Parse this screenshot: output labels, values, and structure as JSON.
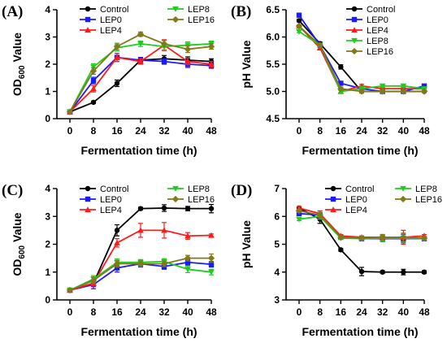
{
  "x_ticks": [
    0,
    8,
    16,
    24,
    32,
    40,
    48
  ],
  "colors": {
    "Control": "#000000",
    "LEP0": "#1a1aff",
    "LEP4": "#ff1a1a",
    "LEP8": "#1fcc1f",
    "LEP16": "#807a1a"
  },
  "chart_data": [
    {
      "panel": "(A)",
      "type": "line",
      "xlabel": "Fermentation time (h)",
      "ylabel": "OD600 Value",
      "ylabel_main": "OD",
      "ylabel_sub": "600",
      "ylabel_tail": " Value",
      "ylim": [
        0,
        4
      ],
      "yticks": [
        0,
        1,
        2,
        3,
        4
      ],
      "ytick_labels": [
        "0",
        "1",
        "2",
        "3",
        "4"
      ],
      "legend": "top",
      "x": [
        0,
        8,
        16,
        24,
        32,
        40,
        48
      ],
      "series": [
        {
          "name": "Control",
          "marker": "circle",
          "values": [
            0.25,
            0.6,
            1.3,
            2.15,
            2.2,
            2.15,
            2.1
          ],
          "err": [
            0.03,
            0.04,
            0.12,
            0.1,
            0.12,
            0.12,
            0.1
          ]
        },
        {
          "name": "LEP0",
          "marker": "square",
          "values": [
            0.25,
            1.4,
            2.25,
            2.15,
            2.1,
            2.0,
            1.95
          ],
          "err": [
            0.03,
            0.12,
            0.15,
            0.1,
            0.1,
            0.12,
            0.1
          ]
        },
        {
          "name": "LEP4",
          "marker": "triangle-up",
          "values": [
            0.25,
            1.1,
            2.25,
            2.1,
            2.7,
            2.1,
            2.0
          ],
          "err": [
            0.03,
            0.12,
            0.15,
            0.1,
            0.2,
            0.12,
            0.1
          ]
        },
        {
          "name": "LEP8",
          "marker": "triangle-down",
          "values": [
            0.25,
            1.9,
            2.6,
            2.75,
            2.65,
            2.7,
            2.75
          ],
          "err": [
            0.03,
            0.12,
            0.12,
            0.1,
            0.12,
            0.12,
            0.1
          ]
        },
        {
          "name": "LEP16",
          "marker": "diamond",
          "values": [
            0.25,
            1.75,
            2.65,
            3.1,
            2.75,
            2.55,
            2.65
          ],
          "err": [
            0.03,
            0.12,
            0.12,
            0.08,
            0.12,
            0.12,
            0.1
          ]
        }
      ]
    },
    {
      "panel": "(B)",
      "type": "line",
      "xlabel": "Fermentation time (h)",
      "ylabel": "pH Value",
      "ylim": [
        4.5,
        6.5
      ],
      "yticks": [
        4.5,
        5.0,
        5.5,
        6.0,
        6.5
      ],
      "ytick_labels": [
        "4.5",
        "5.0",
        "5.5",
        "6.0",
        "6.5"
      ],
      "legend": "top-right",
      "x": [
        0,
        8,
        16,
        24,
        32,
        40,
        48
      ],
      "series": [
        {
          "name": "Control",
          "marker": "circle",
          "values": [
            6.3,
            5.88,
            5.45,
            5.0,
            5.0,
            5.0,
            5.0
          ],
          "err": [
            0.02,
            0.03,
            0.04,
            0.03,
            0.02,
            0.02,
            0.02
          ]
        },
        {
          "name": "LEP0",
          "marker": "square",
          "values": [
            6.4,
            5.85,
            5.15,
            5.05,
            5.0,
            5.0,
            5.1
          ],
          "err": [
            0.02,
            0.03,
            0.03,
            0.03,
            0.02,
            0.02,
            0.02
          ]
        },
        {
          "name": "LEP4",
          "marker": "triangle-up",
          "values": [
            6.2,
            5.8,
            5.0,
            5.1,
            5.05,
            5.05,
            5.05
          ],
          "err": [
            0.02,
            0.03,
            0.03,
            0.03,
            0.02,
            0.02,
            0.02
          ]
        },
        {
          "name": "LEP8",
          "marker": "triangle-down",
          "values": [
            6.1,
            5.85,
            5.0,
            5.05,
            5.1,
            5.1,
            5.05
          ],
          "err": [
            0.02,
            0.03,
            0.03,
            0.03,
            0.02,
            0.02,
            0.02
          ]
        },
        {
          "name": "LEP16",
          "marker": "diamond",
          "values": [
            6.2,
            5.85,
            5.05,
            5.0,
            5.0,
            5.0,
            5.0
          ],
          "err": [
            0.02,
            0.03,
            0.03,
            0.03,
            0.02,
            0.02,
            0.02
          ]
        }
      ]
    },
    {
      "panel": "(C)",
      "type": "line",
      "xlabel": "Fermentation time (h)",
      "ylabel": "OD600 Value",
      "ylabel_main": "OD",
      "ylabel_sub": "600",
      "ylabel_tail": " Value",
      "ylim": [
        0,
        4
      ],
      "yticks": [
        0,
        1,
        2,
        3,
        4
      ],
      "ytick_labels": [
        "0",
        "1",
        "2",
        "3",
        "4"
      ],
      "legend": "top",
      "x": [
        0,
        8,
        16,
        24,
        32,
        40,
        48
      ],
      "series": [
        {
          "name": "Control",
          "marker": "circle",
          "values": [
            0.35,
            0.6,
            2.5,
            3.28,
            3.3,
            3.28,
            3.28
          ],
          "err": [
            0.03,
            0.1,
            0.2,
            0.05,
            0.12,
            0.08,
            0.15
          ]
        },
        {
          "name": "LEP0",
          "marker": "square",
          "values": [
            0.35,
            0.55,
            1.15,
            1.3,
            1.2,
            1.35,
            1.28
          ],
          "err": [
            0.03,
            0.15,
            0.15,
            0.12,
            0.1,
            0.1,
            0.1
          ]
        },
        {
          "name": "LEP4",
          "marker": "triangle-up",
          "values": [
            0.35,
            0.6,
            2.05,
            2.5,
            2.5,
            2.3,
            2.32
          ],
          "err": [
            0.03,
            0.1,
            0.15,
            0.25,
            0.28,
            0.12,
            0.05
          ]
        },
        {
          "name": "LEP8",
          "marker": "triangle-down",
          "values": [
            0.35,
            0.75,
            1.35,
            1.35,
            1.38,
            1.1,
            1.0
          ],
          "err": [
            0.03,
            0.12,
            0.12,
            0.1,
            0.1,
            0.12,
            0.1
          ]
        },
        {
          "name": "LEP16",
          "marker": "diamond",
          "values": [
            0.35,
            0.7,
            1.3,
            1.3,
            1.3,
            1.5,
            1.5
          ],
          "err": [
            0.03,
            0.12,
            0.12,
            0.1,
            0.1,
            0.1,
            0.15
          ]
        }
      ]
    },
    {
      "panel": "(D)",
      "type": "line",
      "xlabel": "Fermentation time (h)",
      "ylabel": "pH Value",
      "ylim": [
        3,
        7
      ],
      "yticks": [
        3,
        4,
        5,
        6,
        7
      ],
      "ytick_labels": [
        "3",
        "4",
        "5",
        "6",
        "7"
      ],
      "legend": "top",
      "x": [
        0,
        8,
        16,
        24,
        32,
        40,
        48
      ],
      "series": [
        {
          "name": "Control",
          "marker": "circle",
          "values": [
            6.3,
            5.9,
            4.8,
            4.02,
            4.0,
            4.0,
            4.0
          ],
          "err": [
            0.05,
            0.15,
            0.05,
            0.15,
            0.05,
            0.1,
            0.05
          ]
        },
        {
          "name": "LEP0",
          "marker": "square",
          "values": [
            6.1,
            6.05,
            5.25,
            5.2,
            5.2,
            5.2,
            5.2
          ],
          "err": [
            0.05,
            0.1,
            0.05,
            0.05,
            0.1,
            0.15,
            0.05
          ]
        },
        {
          "name": "LEP4",
          "marker": "triangle-up",
          "values": [
            6.3,
            6.1,
            5.3,
            5.25,
            5.25,
            5.25,
            5.3
          ],
          "err": [
            0.05,
            0.1,
            0.05,
            0.05,
            0.1,
            0.25,
            0.05
          ]
        },
        {
          "name": "LEP8",
          "marker": "triangle-down",
          "values": [
            5.9,
            6.0,
            5.22,
            5.2,
            5.22,
            5.22,
            5.2
          ],
          "err": [
            0.05,
            0.1,
            0.05,
            0.05,
            0.1,
            0.15,
            0.05
          ]
        },
        {
          "name": "LEP16",
          "marker": "diamond",
          "values": [
            6.2,
            6.05,
            5.25,
            5.22,
            5.25,
            5.25,
            5.22
          ],
          "err": [
            0.05,
            0.1,
            0.05,
            0.05,
            0.1,
            0.15,
            0.05
          ]
        }
      ]
    }
  ]
}
